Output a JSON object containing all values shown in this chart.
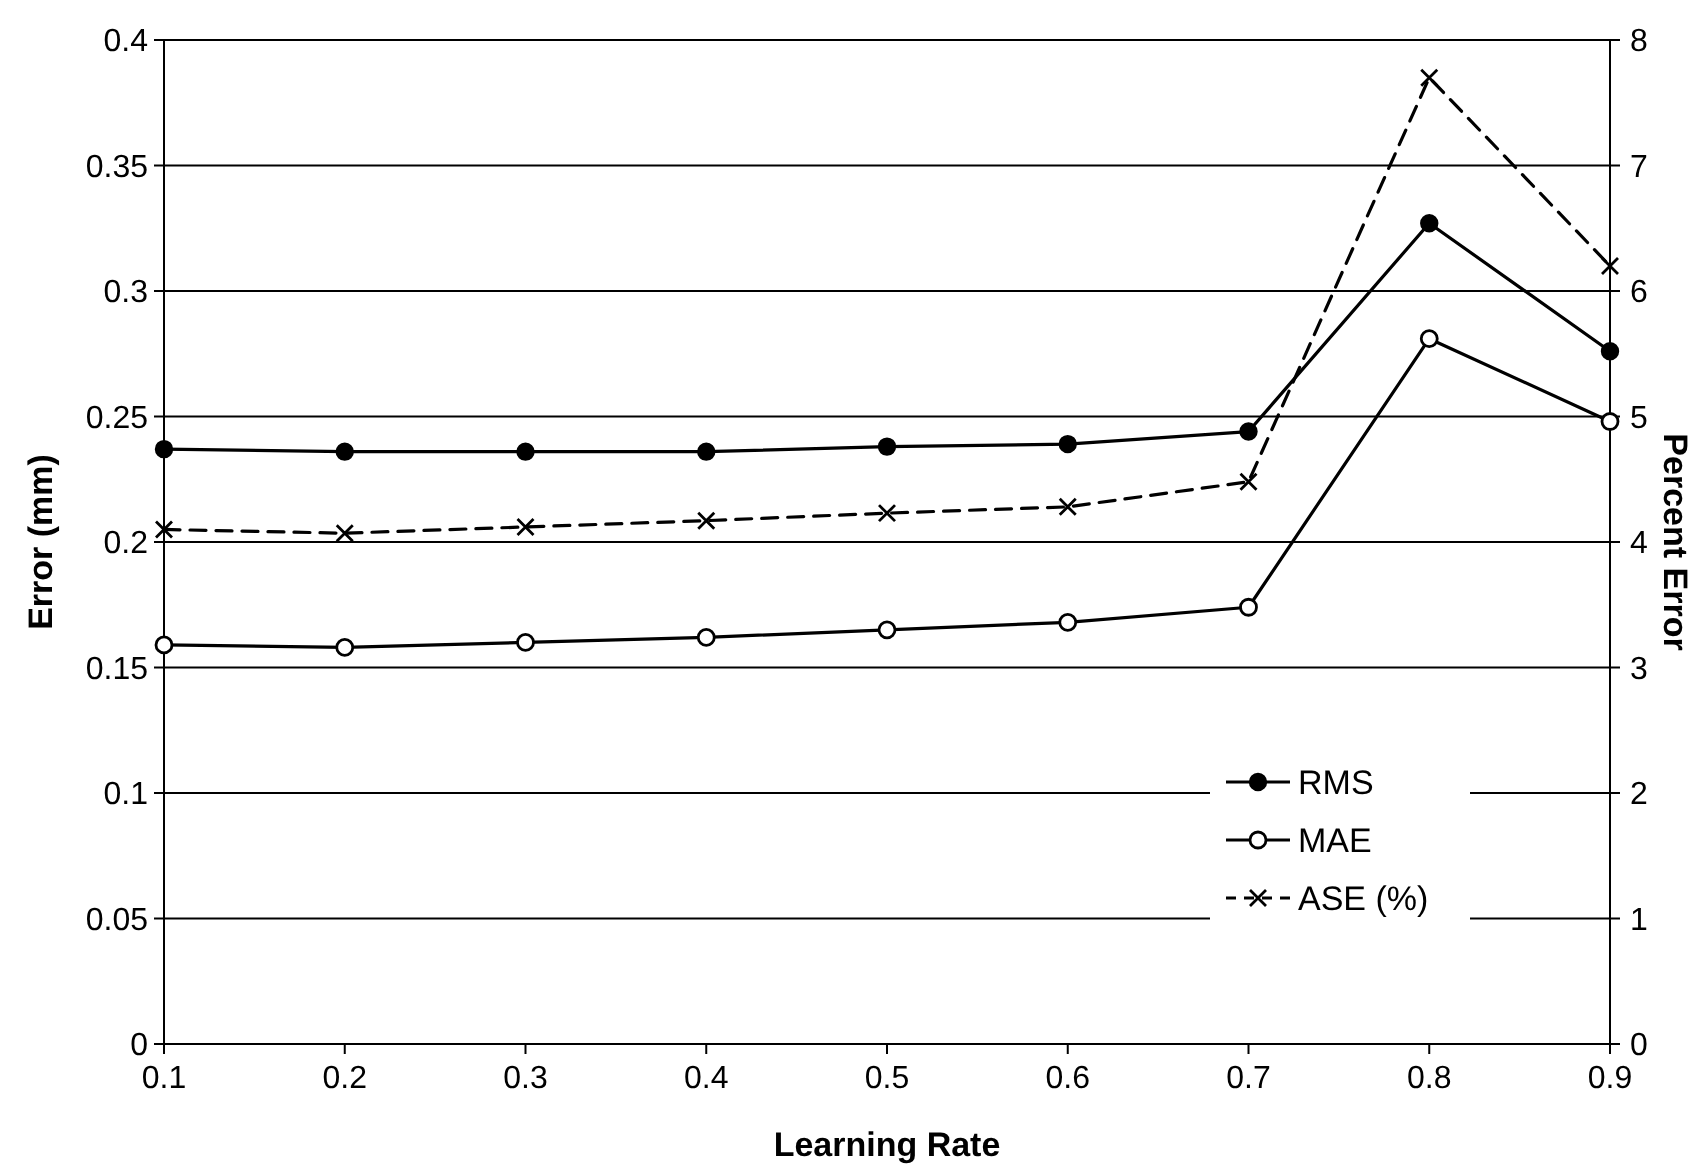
{
  "chart_data": {
    "type": "line",
    "xlabel": "Learning Rate",
    "ylabel": "Error (mm)",
    "y2label": "Percent Error",
    "x": [
      0.1,
      0.2,
      0.3,
      0.4,
      0.5,
      0.6,
      0.7,
      0.8,
      0.9
    ],
    "xlim": [
      0.1,
      0.9
    ],
    "xticks": [
      0.1,
      0.2,
      0.3,
      0.4,
      0.5,
      0.6,
      0.7,
      0.8,
      0.9
    ],
    "ylim": [
      0,
      0.4
    ],
    "yticks": [
      0,
      0.05,
      0.1,
      0.15,
      0.2,
      0.25,
      0.3,
      0.35,
      0.4
    ],
    "y2lim": [
      0,
      8
    ],
    "y2ticks": [
      0,
      1,
      2,
      3,
      4,
      5,
      6,
      7,
      8
    ],
    "grid": "y",
    "legend": "bottom right",
    "series": [
      {
        "name": "RMS",
        "color": "#000000",
        "marker": "circle",
        "line_style": "solid",
        "values": [
          0.237,
          0.236,
          0.236,
          0.236,
          0.238,
          0.239,
          0.244,
          0.327,
          0.276
        ]
      },
      {
        "name": "MAE",
        "color": "#000000",
        "marker": "circle-open",
        "line_style": "solid",
        "values": [
          0.159,
          0.158,
          0.16,
          0.162,
          0.165,
          0.168,
          0.174,
          0.281,
          0.248
        ]
      },
      {
        "name": "ASE (%)",
        "color": "#000000",
        "marker": "cross",
        "line_style": "dashed",
        "axis": "y2",
        "values": [
          4.1,
          4.07,
          4.12,
          4.17,
          4.23,
          4.28,
          4.48,
          7.7,
          6.2
        ]
      }
    ]
  }
}
